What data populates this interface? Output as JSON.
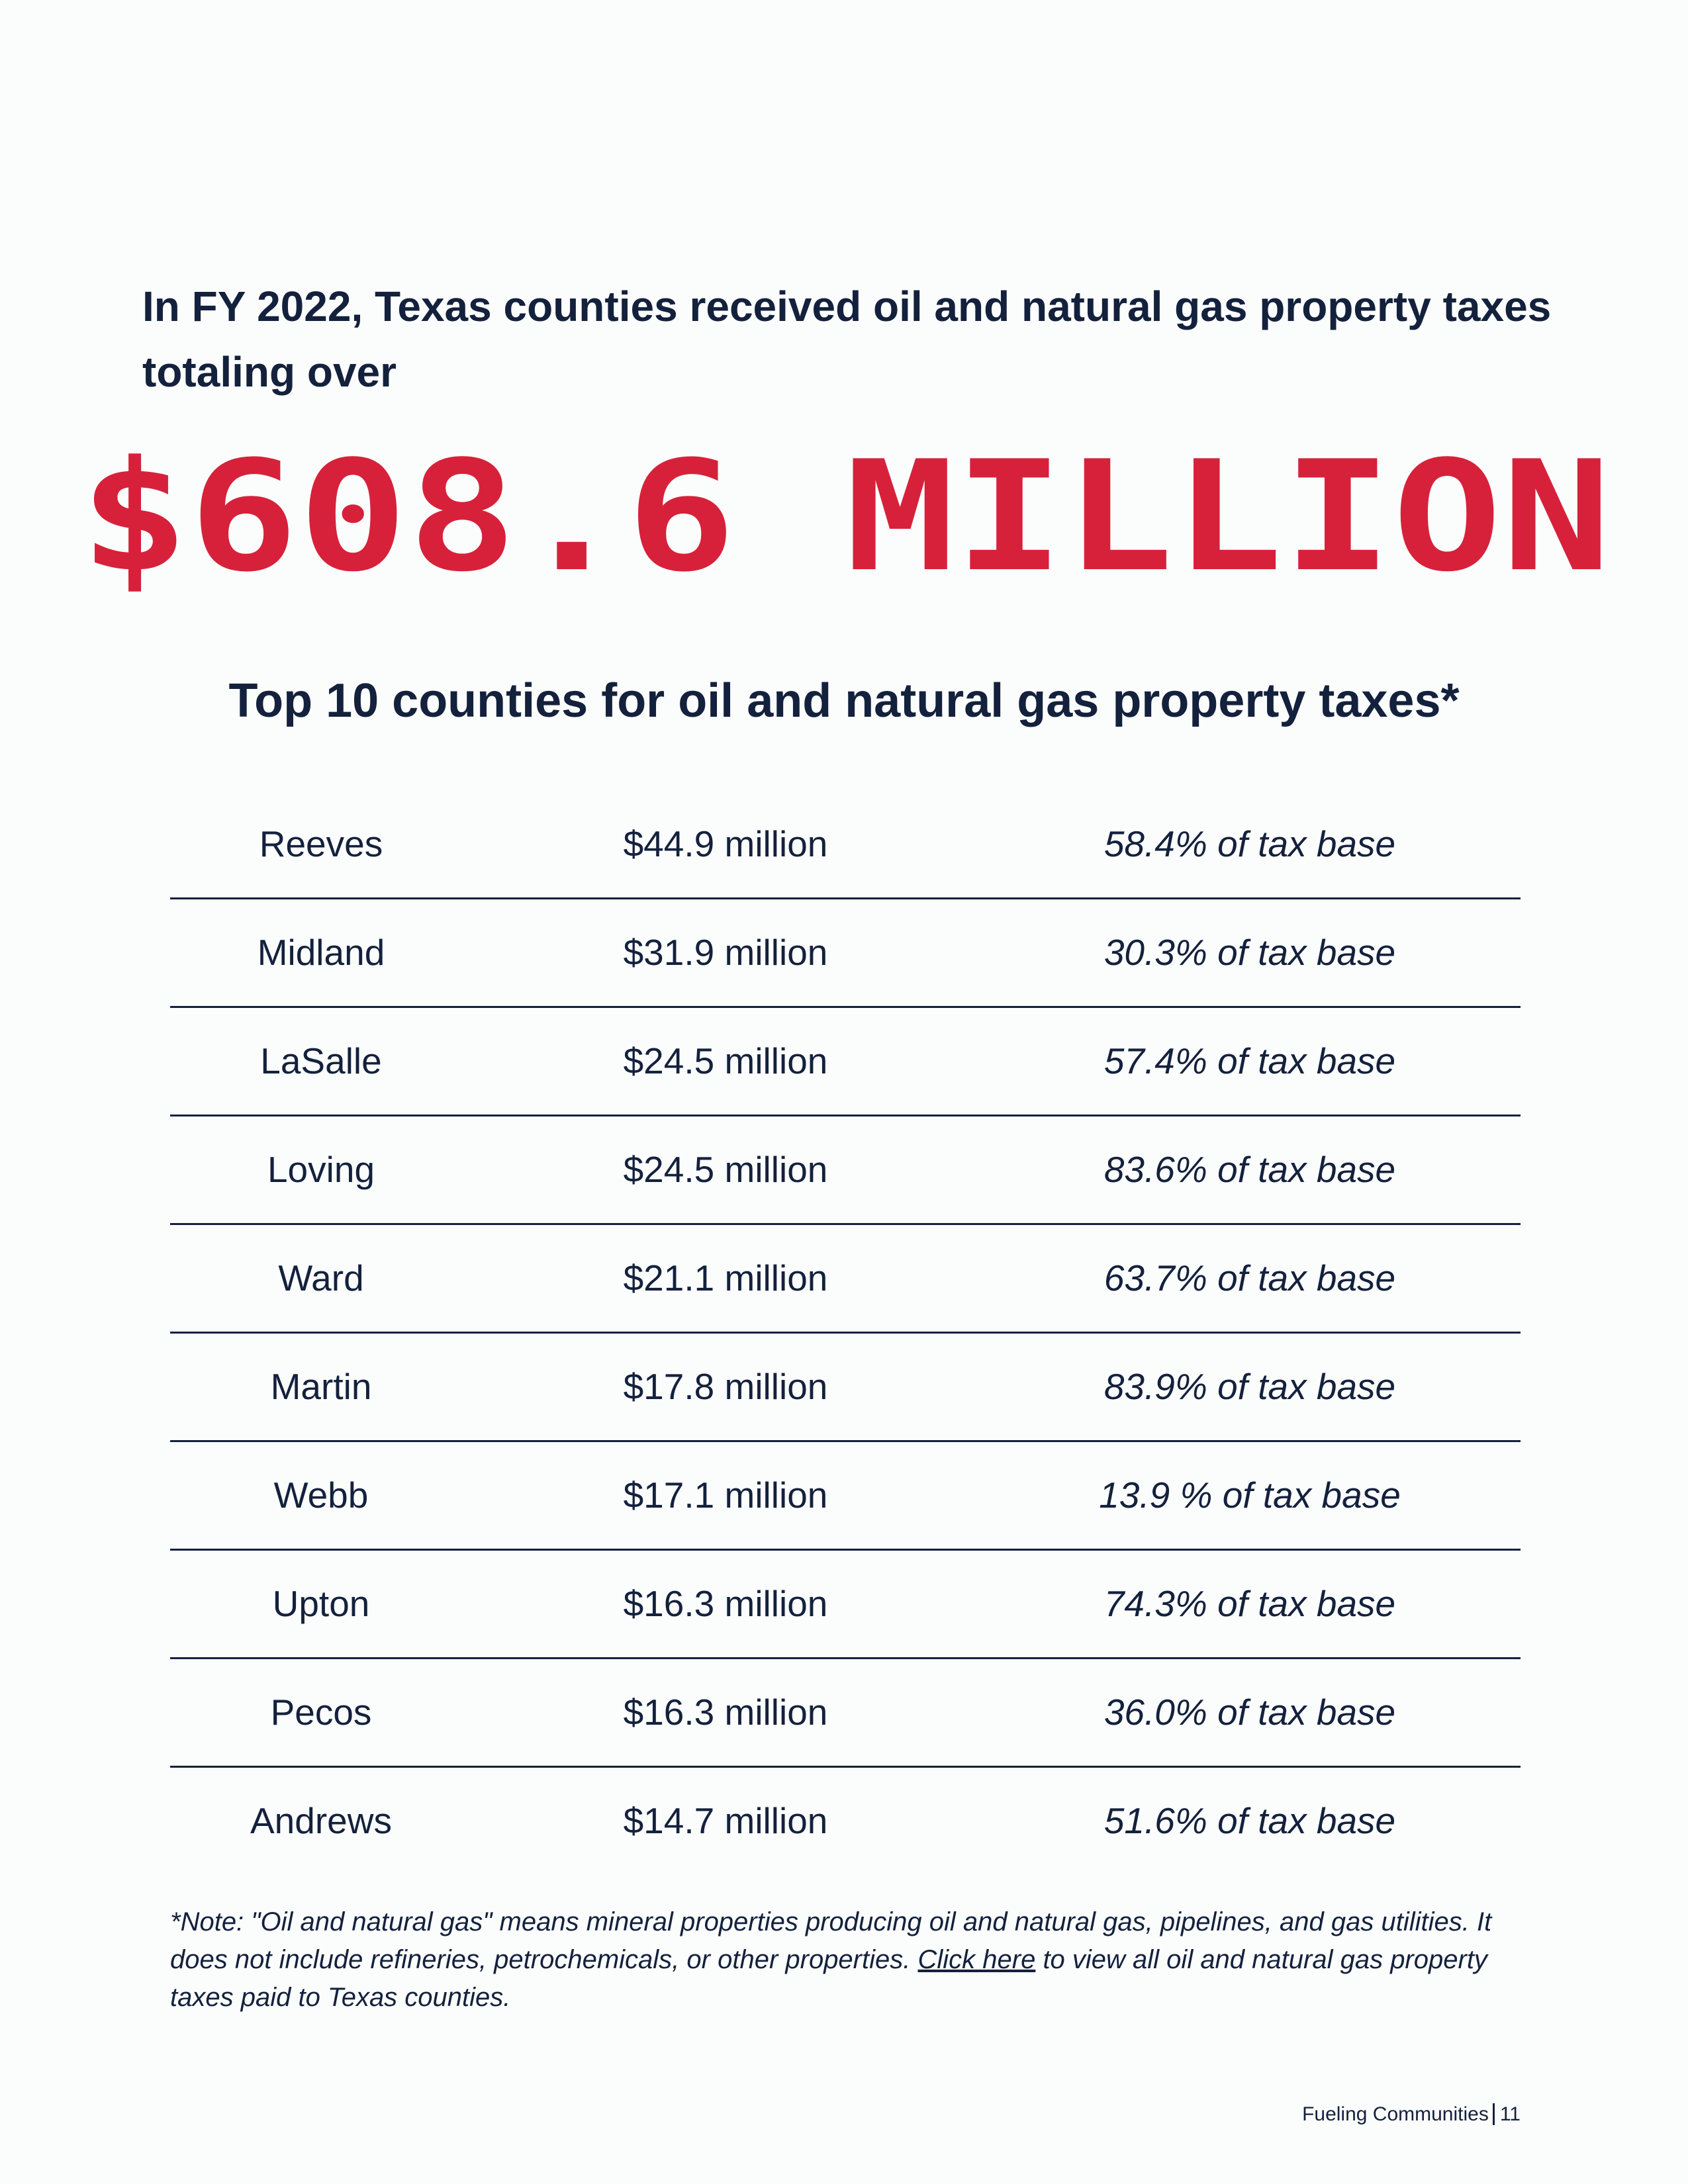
{
  "header": {
    "intro": "In FY 2022, Texas counties received oil and natural gas property taxes totaling over",
    "amount": "$608.6 MILLION"
  },
  "table": {
    "title": "Top 10 counties for oil and natural gas property taxes*",
    "rows": [
      [
        "Reeves",
        "$44.9 million",
        "58.4% of tax base"
      ],
      [
        "Midland",
        "$31.9 million",
        "30.3% of tax base"
      ],
      [
        "LaSalle",
        "$24.5 million",
        "57.4% of tax base"
      ],
      [
        "Loving",
        "$24.5 million",
        "83.6% of tax base"
      ],
      [
        "Ward",
        "$21.1 million",
        "63.7% of tax base"
      ],
      [
        "Martin",
        "$17.8 million",
        "83.9% of tax base"
      ],
      [
        "Webb",
        "$17.1 million",
        "13.9 % of tax base"
      ],
      [
        "Upton",
        "$16.3 million",
        "74.3% of tax base"
      ],
      [
        "Pecos",
        "$16.3 million",
        "36.0% of tax base"
      ],
      [
        "Andrews",
        "$14.7 million",
        "51.6% of tax base"
      ]
    ]
  },
  "note": {
    "before": "*Note: \"Oil and natural gas\" means mineral properties producing oil and natural gas, pipelines, and gas utilities. It does not include refineries, petrochemicals, or other properties. ",
    "link": "Click here",
    "after": " to view all oil and natural gas property taxes paid to Texas counties."
  },
  "footer": {
    "label": "Fueling Communities",
    "page": "11"
  }
}
